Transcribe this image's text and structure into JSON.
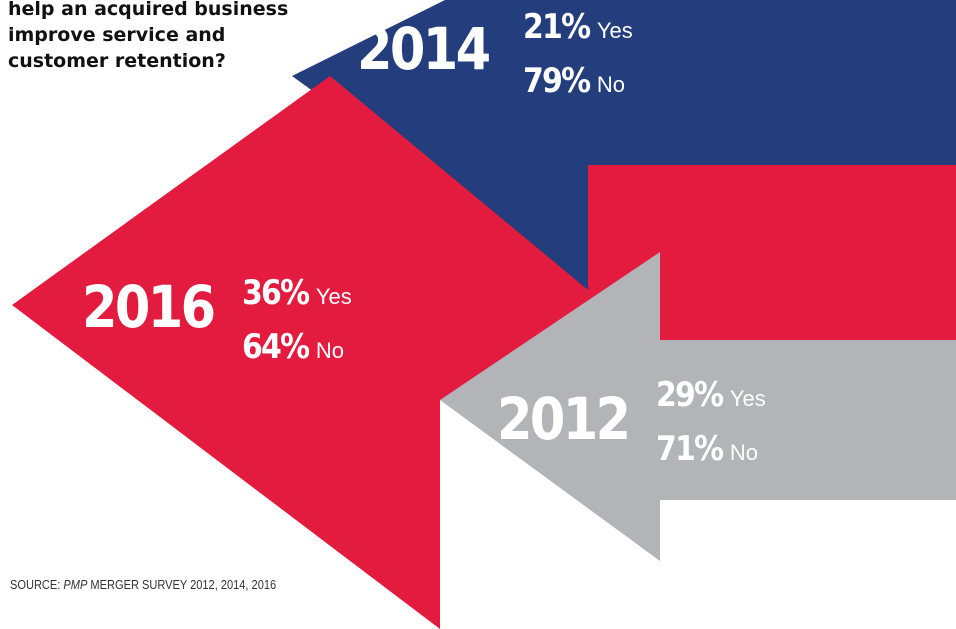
{
  "question": {
    "lines": [
      "help an acquired business",
      "improve service and",
      "customer retention?"
    ]
  },
  "colors": {
    "y2014": "#233d7d",
    "y2016": "#e31c3f",
    "y2012": "#b3b4b8",
    "text": "#ffffff"
  },
  "chart_data": {
    "type": "bar",
    "title": "",
    "categories": [
      "2014",
      "2016",
      "2012"
    ],
    "series": [
      {
        "name": "Yes",
        "values": [
          21,
          36,
          29
        ]
      },
      {
        "name": "No",
        "values": [
          79,
          64,
          71
        ]
      }
    ],
    "value_suffix": "%",
    "groups": [
      {
        "year": "2014",
        "yes_pct": "21%",
        "yes_label": "Yes",
        "no_pct": "79%",
        "no_label": "No"
      },
      {
        "year": "2016",
        "yes_pct": "36%",
        "yes_label": "Yes",
        "no_pct": "64%",
        "no_label": "No"
      },
      {
        "year": "2012",
        "yes_pct": "29%",
        "yes_label": "Yes",
        "no_pct": "71%",
        "no_label": "No"
      }
    ]
  },
  "source": {
    "prefix": "SOURCE: ",
    "italic": "PMP",
    "suffix": " MERGER SURVEY 2012, 2014, 2016"
  }
}
